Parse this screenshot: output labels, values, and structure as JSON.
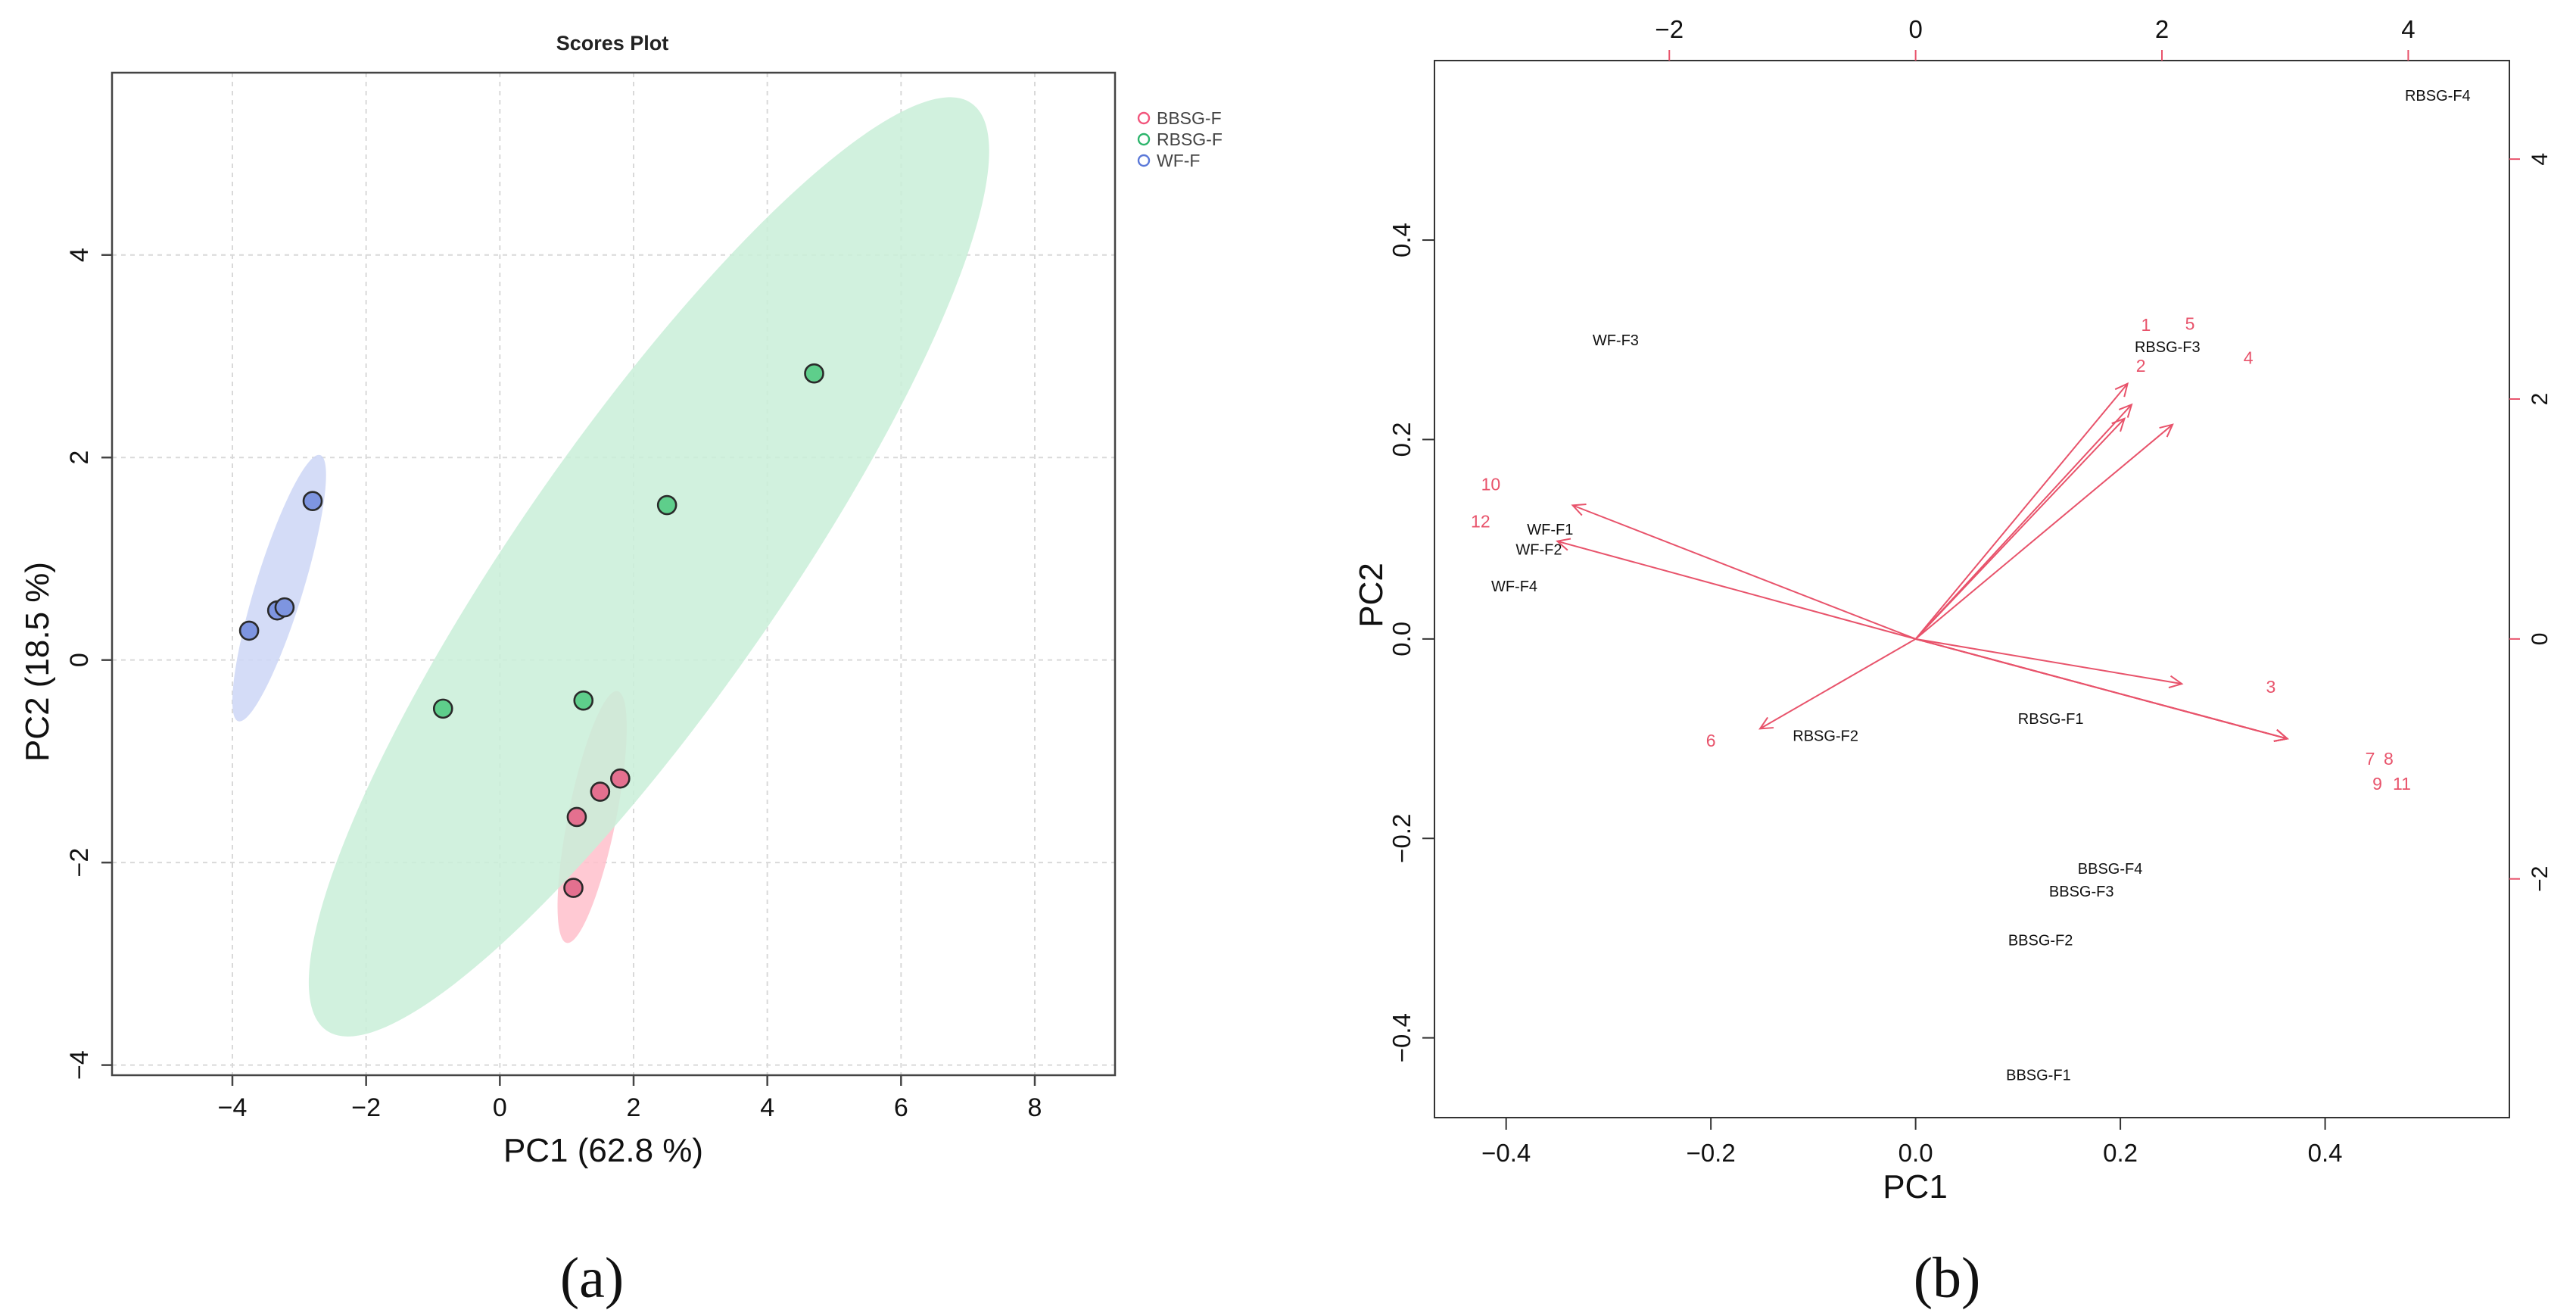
{
  "panels": {
    "a_label": "(a)",
    "b_label": "(b)"
  },
  "chart_data": [
    {
      "type": "scatter",
      "title": "Scores Plot",
      "xlabel": "PC1 (62.8 %)",
      "ylabel": "PC2 (18.5 %)",
      "xlim": [
        -5.8,
        9.2
      ],
      "ylim": [
        -4.1,
        5.8
      ],
      "xticks": [
        -4,
        -2,
        0,
        2,
        4,
        6,
        8
      ],
      "yticks": [
        -4,
        -2,
        0,
        2,
        4
      ],
      "grid": true,
      "legend_position": "top-right",
      "series": [
        {
          "name": "BBSG-F",
          "color": "#f2557c",
          "fill": "#e4708f",
          "ellipse_fill": "#ffc0cb",
          "ellipse": {
            "cx": 1.38,
            "cy": -1.55,
            "rx": 1.3,
            "ry": 0.34,
            "angle": 73
          },
          "points": [
            [
              1.1,
              -2.25
            ],
            [
              1.15,
              -1.55
            ],
            [
              1.5,
              -1.3
            ],
            [
              1.8,
              -1.17
            ]
          ]
        },
        {
          "name": "RBSG-F",
          "color": "#2db56c",
          "fill": "#5ece8b",
          "ellipse_fill": "#c9eed8",
          "ellipse": {
            "cx": 2.23,
            "cy": 0.92,
            "rx": 6.65,
            "ry": 1.52,
            "angle": 43.5
          },
          "points": [
            [
              4.7,
              2.83
            ],
            [
              2.5,
              1.53
            ],
            [
              1.25,
              -0.4
            ],
            [
              -0.85,
              -0.48
            ]
          ]
        },
        {
          "name": "WF-F",
          "color": "#5a78d8",
          "fill": "#7e95e0",
          "ellipse_fill": "#cdd6f6",
          "ellipse": {
            "cx": -3.3,
            "cy": 0.71,
            "rx": 1.45,
            "ry": 0.32,
            "angle": 65
          },
          "points": [
            [
              -2.8,
              1.57
            ],
            [
              -3.75,
              0.29
            ],
            [
              -3.33,
              0.49
            ],
            [
              -3.22,
              0.52
            ]
          ]
        }
      ]
    },
    {
      "type": "scatter",
      "subtype": "biplot",
      "title": "",
      "xlabel": "PC1",
      "ylabel": "PC2",
      "xlim": [
        -0.47,
        0.58
      ],
      "ylim": [
        -0.48,
        0.58
      ],
      "xticks": [
        -0.4,
        -0.2,
        0.0,
        0.2,
        0.4
      ],
      "yticks": [
        -0.4,
        -0.2,
        0.0,
        0.2,
        0.4
      ],
      "tick_labels_x": [
        "−0.4",
        "−0.2",
        "0.0",
        "0.2",
        "0.4"
      ],
      "tick_labels_y": [
        "−0.4",
        "−0.2",
        "0.0",
        "0.2",
        "0.4"
      ],
      "secondary_axes": {
        "top_ticks": [
          -2,
          0,
          2,
          4
        ],
        "top_tick_labels": [
          "−2",
          "0",
          "2",
          "4"
        ],
        "right_ticks": [
          -2,
          0,
          2,
          4
        ],
        "right_tick_labels": [
          "−2",
          "0",
          "2",
          "4"
        ],
        "scale": 0.1203,
        "color": "#e8536b"
      },
      "scores": [
        {
          "label": "RBSG-F4",
          "x": 0.51,
          "y": 0.545
        },
        {
          "label": "WF-F3",
          "x": -0.293,
          "y": 0.3
        },
        {
          "label": "RBSG-F3",
          "x": 0.246,
          "y": 0.293
        },
        {
          "label": "WF-F1",
          "x": -0.357,
          "y": 0.11
        },
        {
          "label": "WF-F2",
          "x": -0.368,
          "y": 0.09
        },
        {
          "label": "WF-F4",
          "x": -0.392,
          "y": 0.053
        },
        {
          "label": "RBSG-F2",
          "x": -0.088,
          "y": -0.097
        },
        {
          "label": "RBSG-F1",
          "x": 0.132,
          "y": -0.08
        },
        {
          "label": "BBSG-F4",
          "x": 0.19,
          "y": -0.23
        },
        {
          "label": "BBSG-F3",
          "x": 0.162,
          "y": -0.253
        },
        {
          "label": "BBSG-F2",
          "x": 0.122,
          "y": -0.302
        },
        {
          "label": "BBSG-F1",
          "x": 0.12,
          "y": -0.437
        }
      ],
      "loadings_color": "#e8536b",
      "loadings": [
        {
          "label": "1",
          "x": 0.207,
          "y": 0.256,
          "lx": 0.225,
          "ly": 0.315
        },
        {
          "label": "2",
          "x": 0.204,
          "y": 0.221,
          "lx": 0.22,
          "ly": 0.274
        },
        {
          "label": "4",
          "x": 0.251,
          "y": 0.215,
          "lx": 0.325,
          "ly": 0.282
        },
        {
          "label": "5",
          "x": 0.211,
          "y": 0.235,
          "lx": 0.268,
          "ly": 0.316
        },
        {
          "label": "3",
          "x": 0.26,
          "y": -0.045,
          "lx": 0.347,
          "ly": -0.048
        },
        {
          "label": "7",
          "x": 0.363,
          "y": -0.1,
          "lx": 0.444,
          "ly": -0.12
        },
        {
          "label": "8",
          "x": 0.363,
          "y": -0.1,
          "lx": 0.462,
          "ly": -0.12
        },
        {
          "label": "9",
          "x": 0.363,
          "y": -0.1,
          "lx": 0.451,
          "ly": -0.145
        },
        {
          "label": "11",
          "x": 0.363,
          "y": -0.1,
          "lx": 0.475,
          "ly": -0.145
        },
        {
          "label": "10",
          "x": -0.335,
          "y": 0.134,
          "lx": -0.415,
          "ly": 0.155
        },
        {
          "label": "12",
          "x": -0.35,
          "y": 0.098,
          "lx": -0.425,
          "ly": 0.118
        },
        {
          "label": "6",
          "x": -0.152,
          "y": -0.09,
          "lx": -0.2,
          "ly": -0.102
        }
      ]
    }
  ]
}
